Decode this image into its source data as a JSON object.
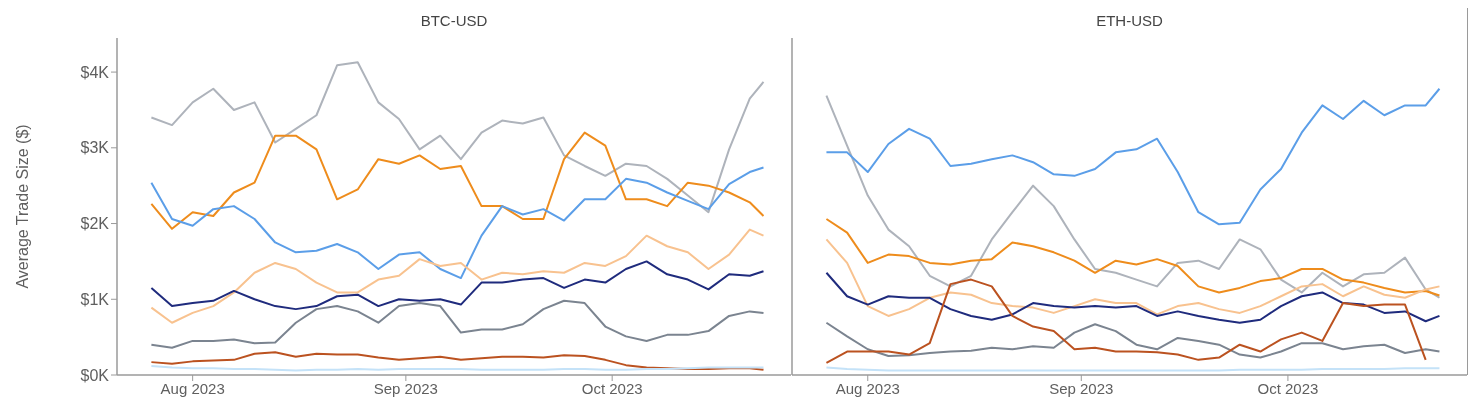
{
  "chart_data": [
    {
      "type": "line",
      "title": "BTC-USD",
      "ylabel": "Average Trade Size ($)",
      "marker": "none",
      "x": [
        "2023-07-26",
        "2023-07-29",
        "2023-08-01",
        "2023-08-04",
        "2023-08-07",
        "2023-08-10",
        "2023-08-13",
        "2023-08-16",
        "2023-08-19",
        "2023-08-22",
        "2023-08-25",
        "2023-08-28",
        "2023-08-31",
        "2023-09-03",
        "2023-09-06",
        "2023-09-09",
        "2023-09-12",
        "2023-09-15",
        "2023-09-18",
        "2023-09-21",
        "2023-09-24",
        "2023-09-27",
        "2023-09-30",
        "2023-10-03",
        "2023-10-06",
        "2023-10-09",
        "2023-10-12",
        "2023-10-15",
        "2023-10-18",
        "2023-10-21",
        "2023-10-23"
      ],
      "xlim": [
        "2023-07-21",
        "2023-10-27"
      ],
      "xticks": [
        {
          "value": "2023-08-01",
          "label": "Aug 2023"
        },
        {
          "value": "2023-09-01",
          "label": "Sep 2023"
        },
        {
          "value": "2023-10-01",
          "label": "Oct 2023"
        }
      ],
      "ylim": [
        0,
        4450
      ],
      "yticks": [
        {
          "value": 0,
          "label": "$0K"
        },
        {
          "value": 1000,
          "label": "$1K"
        },
        {
          "value": 2000,
          "label": "$2K"
        },
        {
          "value": 3000,
          "label": "$3K"
        },
        {
          "value": 4000,
          "label": "$4K"
        }
      ],
      "series": [
        {
          "color": "#aeb3bb",
          "values": [
            3400,
            3300,
            3600,
            3780,
            3500,
            3600,
            3070,
            3250,
            3430,
            4090,
            4130,
            3600,
            3380,
            2980,
            3160,
            2850,
            3200,
            3360,
            3320,
            3400,
            2900,
            2760,
            2630,
            2790,
            2760,
            2590,
            2370,
            2150,
            2980,
            3650,
            3870
          ]
        },
        {
          "color": "#ee8c1c",
          "values": [
            2260,
            1930,
            2150,
            2100,
            2410,
            2540,
            3160,
            3160,
            2980,
            2320,
            2450,
            2850,
            2790,
            2900,
            2720,
            2760,
            2230,
            2230,
            2060,
            2060,
            2850,
            3200,
            3030,
            2320,
            2320,
            2230,
            2540,
            2500,
            2410,
            2280,
            2100
          ]
        },
        {
          "color": "#5b9ee8",
          "values": [
            2540,
            2060,
            1970,
            2190,
            2230,
            2060,
            1750,
            1620,
            1640,
            1730,
            1620,
            1400,
            1590,
            1620,
            1400,
            1280,
            1840,
            2230,
            2120,
            2190,
            2040,
            2320,
            2320,
            2590,
            2540,
            2410,
            2300,
            2190,
            2520,
            2680,
            2740
          ]
        },
        {
          "color": "#f8c28f",
          "values": [
            890,
            690,
            820,
            910,
            1090,
            1350,
            1480,
            1400,
            1220,
            1090,
            1090,
            1260,
            1310,
            1530,
            1440,
            1480,
            1260,
            1350,
            1330,
            1370,
            1350,
            1480,
            1440,
            1570,
            1840,
            1700,
            1620,
            1400,
            1590,
            1920,
            1840
          ]
        },
        {
          "color": "#1f2b7d",
          "values": [
            1150,
            910,
            950,
            980,
            1110,
            1000,
            910,
            870,
            910,
            1040,
            1060,
            910,
            1000,
            980,
            1000,
            930,
            1220,
            1220,
            1260,
            1280,
            1150,
            1260,
            1220,
            1400,
            1500,
            1330,
            1260,
            1130,
            1330,
            1310,
            1370
          ]
        },
        {
          "color": "#7b8490",
          "values": [
            400,
            360,
            450,
            450,
            470,
            420,
            430,
            690,
            870,
            910,
            840,
            690,
            910,
            950,
            910,
            560,
            600,
            600,
            670,
            870,
            980,
            950,
            640,
            510,
            450,
            530,
            530,
            580,
            780,
            840,
            820
          ]
        },
        {
          "color": "#bb5220",
          "values": [
            170,
            150,
            180,
            190,
            200,
            280,
            300,
            240,
            280,
            270,
            270,
            230,
            200,
            220,
            240,
            200,
            220,
            240,
            240,
            230,
            260,
            250,
            200,
            130,
            100,
            90,
            80,
            80,
            90,
            90,
            70
          ]
        },
        {
          "color": "#c4e2f8",
          "values": [
            120,
            100,
            90,
            90,
            80,
            80,
            70,
            60,
            70,
            70,
            80,
            70,
            80,
            80,
            80,
            80,
            70,
            70,
            70,
            70,
            80,
            80,
            70,
            70,
            80,
            80,
            90,
            100,
            100,
            100,
            100
          ]
        }
      ]
    },
    {
      "type": "line",
      "title": "ETH-USD",
      "marker": "none",
      "tick_labels": "x",
      "x": [
        "2023-07-26",
        "2023-07-29",
        "2023-08-01",
        "2023-08-04",
        "2023-08-07",
        "2023-08-10",
        "2023-08-13",
        "2023-08-16",
        "2023-08-19",
        "2023-08-22",
        "2023-08-25",
        "2023-08-28",
        "2023-08-31",
        "2023-09-03",
        "2023-09-06",
        "2023-09-09",
        "2023-09-12",
        "2023-09-15",
        "2023-09-18",
        "2023-09-21",
        "2023-09-24",
        "2023-09-27",
        "2023-09-30",
        "2023-10-03",
        "2023-10-06",
        "2023-10-09",
        "2023-10-12",
        "2023-10-15",
        "2023-10-18",
        "2023-10-21",
        "2023-10-23"
      ],
      "xlim": [
        "2023-07-21",
        "2023-10-27"
      ],
      "xticks": [
        {
          "value": "2023-08-01",
          "label": "Aug 2023"
        },
        {
          "value": "2023-09-01",
          "label": "Sep 2023"
        },
        {
          "value": "2023-10-01",
          "label": "Oct 2023"
        }
      ],
      "ylim": [
        0,
        4450
      ],
      "series": [
        {
          "color": "#aeb3bb",
          "values": [
            3690,
            3030,
            2370,
            1920,
            1700,
            1310,
            1170,
            1310,
            1790,
            2150,
            2500,
            2230,
            1790,
            1400,
            1350,
            1260,
            1170,
            1480,
            1510,
            1400,
            1790,
            1660,
            1260,
            1090,
            1350,
            1170,
            1330,
            1350,
            1550,
            1130,
            1020
          ]
        },
        {
          "color": "#ee8c1c",
          "values": [
            2060,
            1880,
            1480,
            1590,
            1570,
            1480,
            1460,
            1510,
            1530,
            1750,
            1700,
            1620,
            1510,
            1350,
            1510,
            1460,
            1530,
            1440,
            1170,
            1090,
            1150,
            1240,
            1280,
            1400,
            1400,
            1260,
            1220,
            1150,
            1090,
            1110,
            1050
          ]
        },
        {
          "color": "#5b9ee8",
          "values": [
            2940,
            2940,
            2680,
            3050,
            3250,
            3120,
            2760,
            2790,
            2850,
            2900,
            2810,
            2650,
            2630,
            2720,
            2940,
            2980,
            3120,
            2680,
            2150,
            1990,
            2010,
            2450,
            2720,
            3200,
            3560,
            3380,
            3620,
            3430,
            3560,
            3560,
            3780
          ]
        },
        {
          "color": "#f8c28f",
          "values": [
            1790,
            1480,
            910,
            780,
            870,
            1020,
            1090,
            1060,
            950,
            910,
            890,
            820,
            910,
            1000,
            950,
            950,
            800,
            910,
            950,
            870,
            820,
            910,
            1040,
            1170,
            1200,
            1040,
            1170,
            1060,
            1020,
            1130,
            1170
          ]
        },
        {
          "color": "#1f2b7d",
          "values": [
            1350,
            1040,
            930,
            1040,
            1020,
            1020,
            870,
            780,
            730,
            800,
            950,
            910,
            890,
            910,
            890,
            910,
            780,
            840,
            780,
            730,
            690,
            730,
            910,
            1040,
            1090,
            950,
            930,
            820,
            840,
            710,
            780
          ]
        },
        {
          "color": "#7b8490",
          "values": [
            690,
            510,
            340,
            250,
            260,
            290,
            310,
            320,
            360,
            340,
            380,
            360,
            560,
            670,
            580,
            400,
            340,
            490,
            450,
            400,
            270,
            230,
            310,
            420,
            420,
            340,
            380,
            400,
            290,
            340,
            310
          ]
        },
        {
          "color": "#bb5220",
          "values": [
            160,
            310,
            310,
            310,
            270,
            420,
            1200,
            1260,
            1170,
            780,
            640,
            580,
            340,
            360,
            310,
            310,
            300,
            270,
            200,
            230,
            400,
            310,
            470,
            560,
            450,
            950,
            910,
            930,
            930,
            200,
            null
          ]
        },
        {
          "color": "#c4e2f8",
          "values": [
            100,
            80,
            70,
            60,
            60,
            60,
            60,
            60,
            60,
            60,
            60,
            60,
            60,
            60,
            60,
            60,
            60,
            60,
            60,
            60,
            70,
            70,
            70,
            70,
            80,
            80,
            80,
            80,
            90,
            90,
            90
          ]
        }
      ]
    }
  ]
}
